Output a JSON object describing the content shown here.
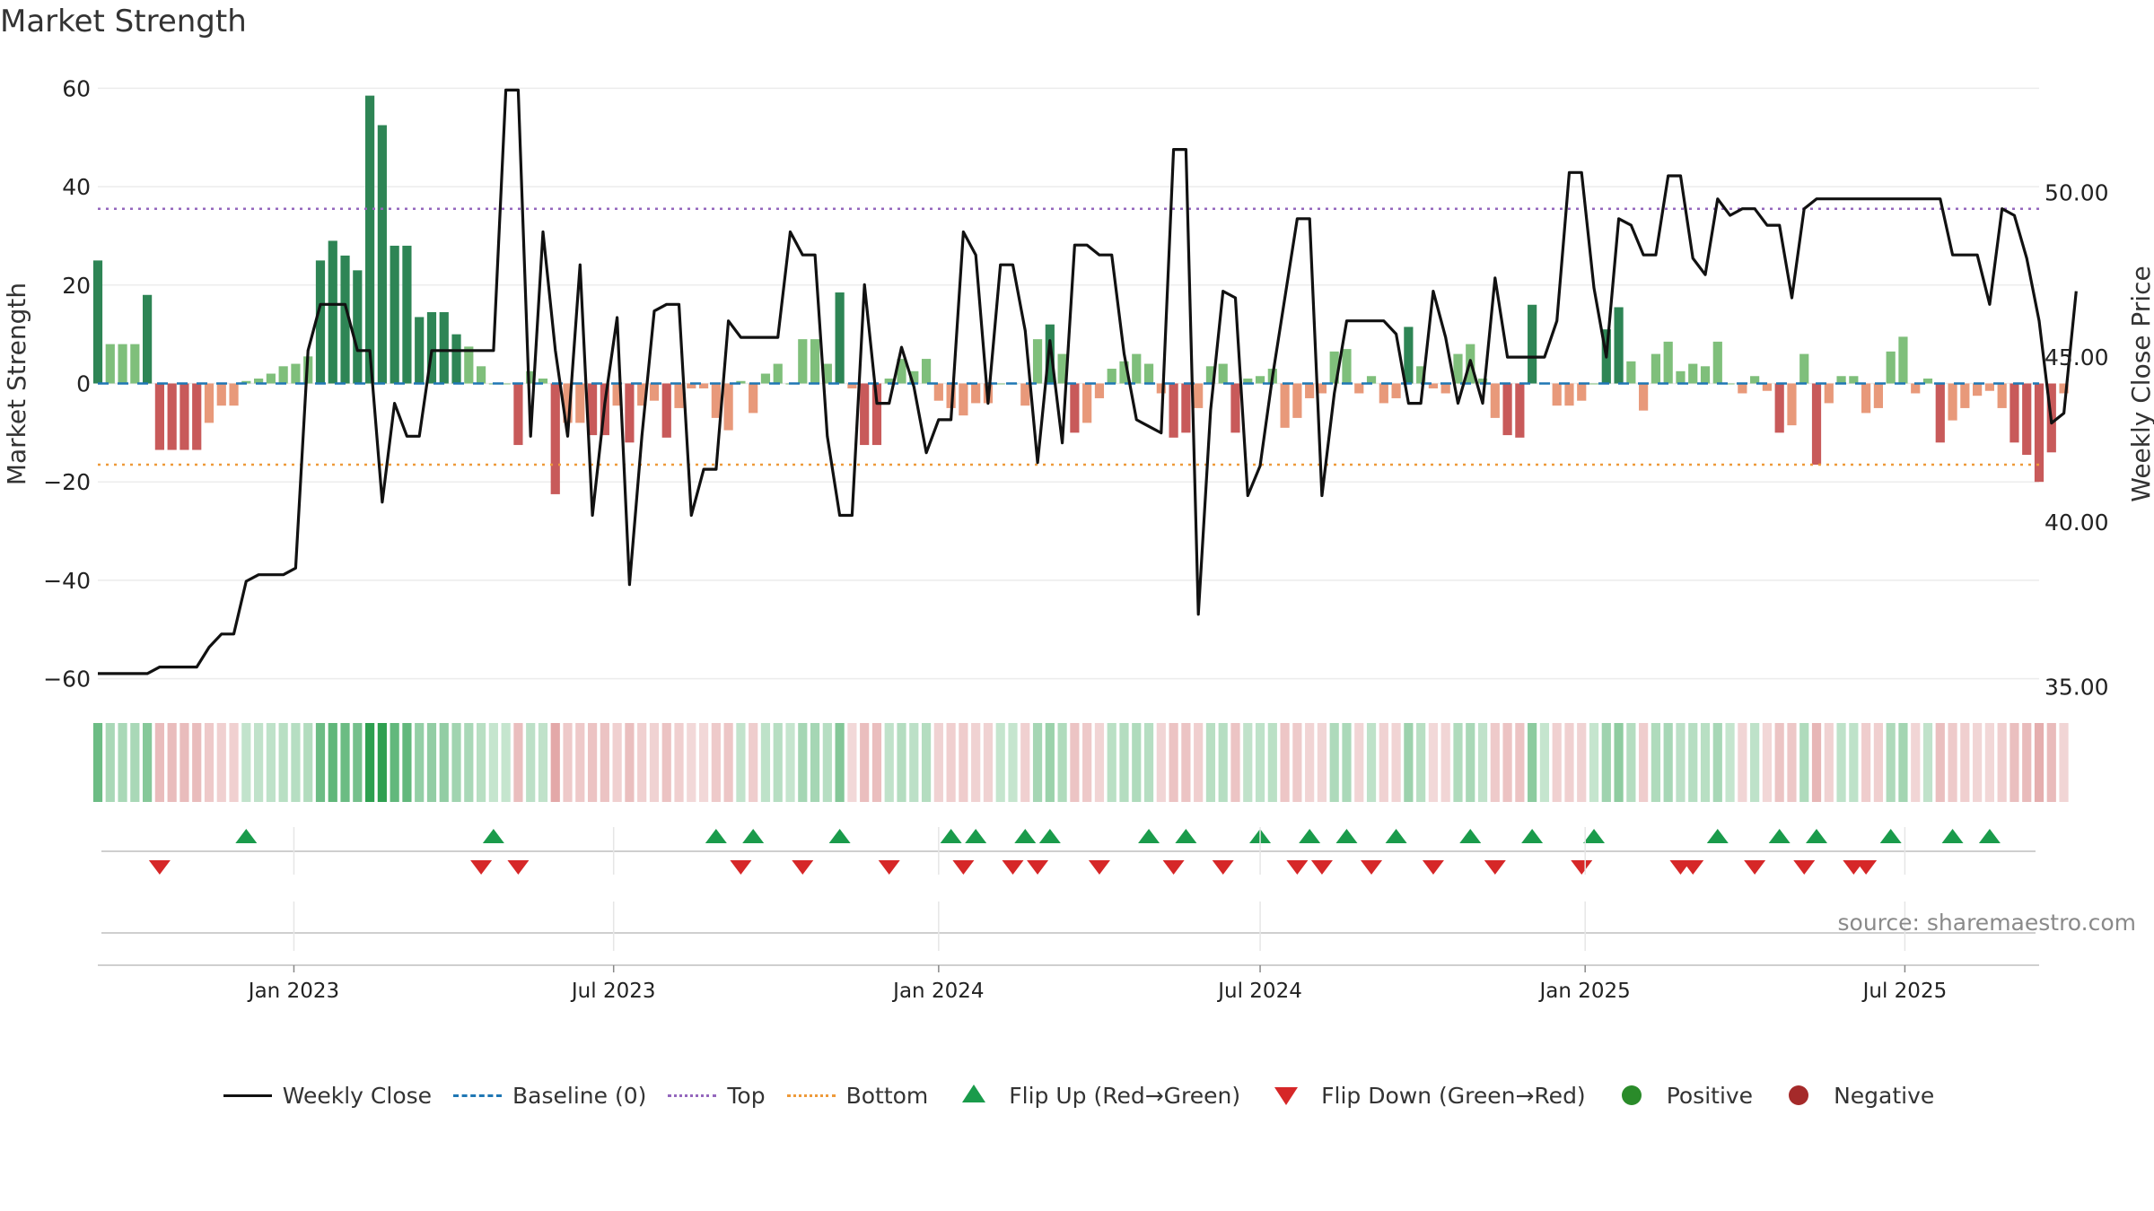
{
  "title": "Market Strength",
  "source": "source: sharemaestro.com",
  "colors": {
    "pos_dark": "#2e8555",
    "pos_light": "#7fbf7b",
    "neg_dark": "#c85a5a",
    "neg_light": "#e8997a",
    "close": "#111111",
    "baseline": "#1f77b4",
    "top": "#9467bd",
    "bottom": "#ee9a3a",
    "flip_up": "#1a9b4b",
    "flip_down": "#d62728"
  },
  "legend": [
    {
      "label": "Weekly Close",
      "symbol": "line"
    },
    {
      "label": "Baseline (0)",
      "symbol": "dash"
    },
    {
      "label": "Top",
      "symbol": "dot-purple"
    },
    {
      "label": "Bottom",
      "symbol": "dot-orange"
    },
    {
      "label": "Flip Up (Red→Green)",
      "symbol": "tri-up"
    },
    {
      "label": "Flip Down (Green→Red)",
      "symbol": "tri-down"
    },
    {
      "label": "Positive",
      "symbol": "circ-g"
    },
    {
      "label": "Negative",
      "symbol": "circ-r"
    }
  ],
  "chart_data": {
    "type": "bar",
    "title": "Market Strength",
    "ylabel": "Market Strength",
    "y2label": "Weekly Close Price",
    "ylim": [
      -67,
      67
    ],
    "y2lim": [
      34.2,
      54.2
    ],
    "yticks": [
      60,
      40,
      20,
      0,
      -20,
      -40,
      -60
    ],
    "ytick_labels": [
      "60",
      "40",
      "20",
      "0",
      "−20",
      "−40",
      "−60"
    ],
    "y2ticks": [
      50.0,
      45.0,
      40.0,
      35.0
    ],
    "y2tick_labels": [
      "50.00",
      "45.00",
      "40.00",
      "35.00"
    ],
    "xlim": [
      "2022-09-12",
      "2025-09-15"
    ],
    "xticks": [
      "2023-01-01",
      "2023-07-01",
      "2024-01-01",
      "2024-07-01",
      "2025-01-01",
      "2025-07-01"
    ],
    "xtick_labels": [
      "Jan 2023",
      "Jul 2023",
      "Jan 2024",
      "Jul 2024",
      "Jan 2025",
      "Jul 2025"
    ],
    "top_level": 35.5,
    "bottom_level": -16.5,
    "baseline": 0,
    "start_date": "2022-09-12",
    "market_strength": [
      25,
      8,
      8,
      8,
      18,
      -13.5,
      -13.5,
      -13.5,
      -13.5,
      -8,
      -4.5,
      -4.5,
      0.5,
      1,
      2,
      3.5,
      4,
      5.5,
      25,
      29,
      26,
      23,
      58.5,
      52.5,
      28,
      28,
      13.5,
      14.5,
      14.5,
      10,
      7.5,
      3.5,
      0,
      0,
      -12.5,
      2.5,
      1,
      -22.5,
      -8,
      -8,
      -10.5,
      -10.5,
      -4.5,
      -12,
      -4.5,
      -3.5,
      -11,
      -5,
      -1,
      -1,
      -7,
      -9.5,
      0.5,
      -6,
      2,
      4,
      0,
      9,
      9,
      4,
      18.5,
      -1,
      -12.5,
      -12.5,
      1,
      5,
      2.5,
      5,
      -3.5,
      -5,
      -6.5,
      -4,
      -4,
      0,
      0,
      -4.5,
      9,
      12,
      6,
      -10,
      -8,
      -3,
      3,
      4.5,
      6,
      4,
      -2,
      -11,
      -10,
      -5,
      3.5,
      4,
      -10,
      1,
      1.5,
      3,
      -9,
      -7,
      -3,
      -2,
      6.5,
      7,
      -2,
      1.5,
      -4,
      -3,
      11.5,
      3.5,
      -1,
      -2,
      6,
      8,
      1,
      -7,
      -10.5,
      -11,
      16,
      0,
      -4.5,
      -4.5,
      -3.5,
      0,
      11,
      15.5,
      4.5,
      -5.5,
      6,
      8.5,
      2.5,
      4,
      3.5,
      8.5,
      0,
      -2,
      1.5,
      -1.5,
      -10,
      -8.5,
      6,
      -16.5,
      -4,
      1.5,
      1.5,
      -6,
      -5,
      6.5,
      9.5,
      -2,
      1,
      -12,
      -7.5,
      -5,
      -2.5,
      -1.5,
      -5,
      -12,
      -14.5,
      -20,
      -14,
      -2
    ],
    "weekly_close": [
      35.4,
      35.4,
      35.4,
      35.4,
      35.4,
      35.6,
      35.6,
      35.6,
      35.6,
      36.2,
      36.6,
      36.6,
      38.2,
      38.4,
      38.4,
      38.4,
      38.6,
      45.2,
      46.6,
      46.6,
      46.6,
      45.2,
      45.2,
      40.6,
      43.6,
      42.6,
      42.6,
      45.2,
      45.2,
      45.2,
      45.2,
      45.2,
      45.2,
      53.1,
      53.1,
      42.6,
      48.8,
      45.2,
      42.6,
      47.8,
      40.2,
      43.6,
      46.2,
      38.1,
      42.6,
      46.4,
      46.6,
      46.6,
      40.2,
      41.6,
      41.6,
      46.1,
      45.6,
      45.6,
      45.6,
      45.6,
      48.8,
      48.1,
      48.1,
      42.6,
      40.2,
      40.2,
      47.2,
      43.6,
      43.6,
      45.3,
      44.1,
      42.1,
      43.1,
      43.1,
      48.8,
      48.1,
      43.6,
      47.8,
      47.8,
      45.8,
      41.8,
      45.5,
      42.4,
      48.4,
      48.4,
      48.1,
      48.1,
      45.1,
      43.1,
      42.9,
      42.7,
      51.3,
      51.3,
      37.2,
      43.4,
      47.0,
      46.8,
      40.8,
      41.7,
      44.4,
      46.8,
      49.2,
      49.2,
      40.8,
      43.9,
      46.1,
      46.1,
      46.1,
      46.1,
      45.7,
      43.6,
      43.6,
      47.0,
      45.6,
      43.6,
      44.9,
      43.6,
      47.4,
      45.0,
      45.0,
      45.0,
      45.0,
      46.1,
      50.6,
      50.6,
      47.1,
      45.0,
      49.2,
      49.0,
      48.1,
      48.1,
      50.5,
      50.5,
      48.0,
      47.5,
      49.8,
      49.3,
      49.5,
      49.5,
      49.0,
      49.0,
      46.8,
      49.5,
      49.8,
      49.8,
      49.8,
      49.8,
      49.8,
      49.8,
      49.8,
      49.8,
      49.8,
      49.8,
      49.8,
      48.1,
      48.1,
      48.1,
      46.6,
      49.5,
      49.3,
      48.0,
      46.1,
      43.0,
      43.3,
      47.0
    ],
    "flip_up_weeks": [
      12,
      32,
      50,
      53,
      60,
      69,
      71,
      75,
      77,
      85,
      88,
      94,
      98,
      101,
      105,
      111,
      116,
      121,
      131,
      136,
      139,
      145,
      150,
      153
    ],
    "flip_down_weeks": [
      5,
      31,
      34,
      52,
      57,
      64,
      70,
      74,
      76,
      81,
      87,
      91,
      97,
      99,
      103,
      108,
      113,
      120,
      128,
      129,
      134,
      138,
      142,
      143
    ]
  }
}
